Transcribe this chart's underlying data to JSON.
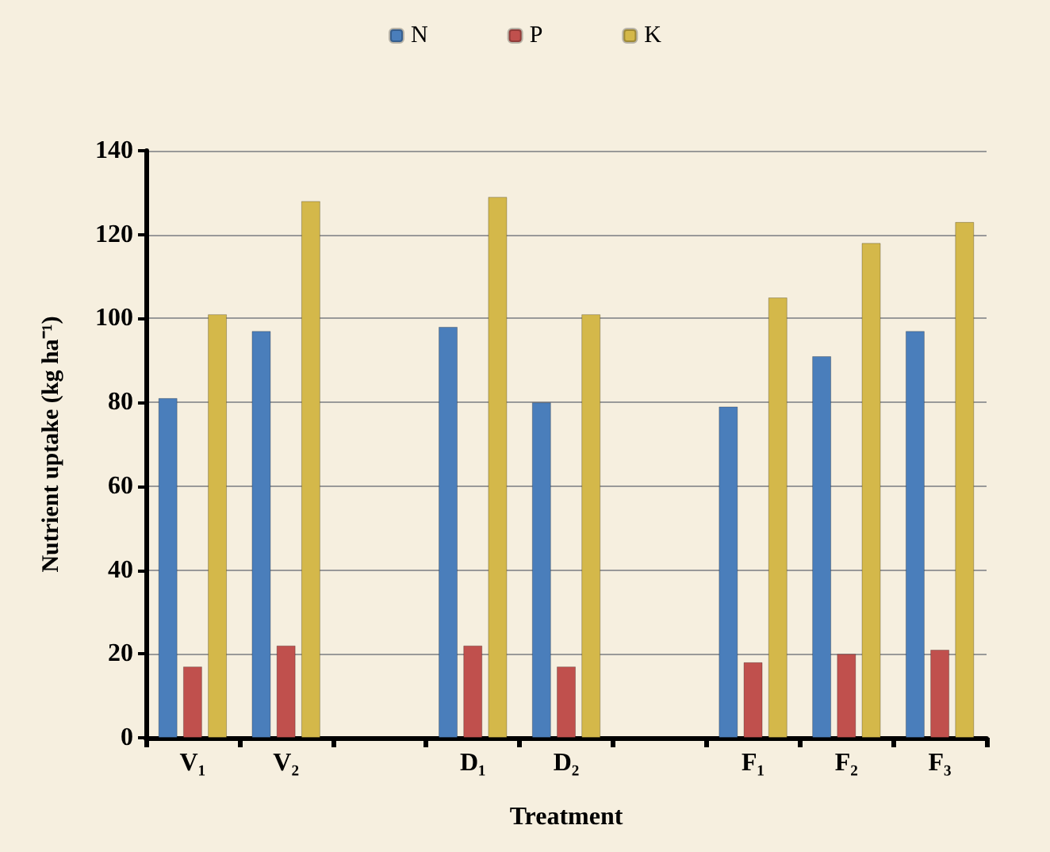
{
  "chart_data": {
    "type": "bar",
    "xlabel": "Treatment",
    "ylabel": "Nutrient uptake (kg ha⁻¹)",
    "categories": [
      "V₁",
      "V₂",
      null,
      "D₁",
      "D₂",
      null,
      "F₁",
      "F₂",
      "F₃"
    ],
    "series": [
      {
        "name": "N",
        "color": "#4a7ebb",
        "values": [
          81,
          97,
          null,
          98,
          80,
          null,
          79,
          91,
          97
        ]
      },
      {
        "name": "P",
        "color": "#c0504d",
        "values": [
          17,
          22,
          null,
          22,
          17,
          null,
          18,
          20,
          21
        ]
      },
      {
        "name": "K",
        "color": "#d4b84a",
        "values": [
          101,
          128,
          null,
          129,
          101,
          null,
          105,
          118,
          123
        ]
      }
    ],
    "ylim": [
      0,
      140
    ],
    "yticks": [
      0,
      20,
      40,
      60,
      80,
      100,
      120,
      140
    ],
    "grid": "y",
    "legend": "top"
  }
}
